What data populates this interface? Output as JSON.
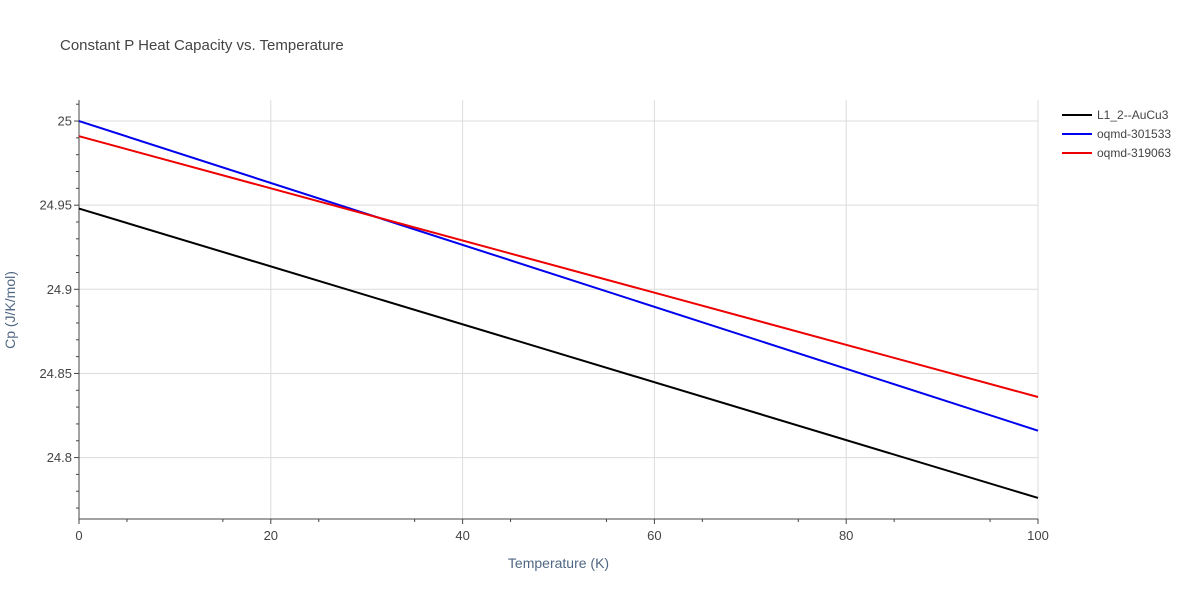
{
  "chart_data": {
    "type": "line",
    "title": "Constant P Heat Capacity vs. Temperature",
    "xlabel": "Temperature (K)",
    "ylabel": "Cp (J/K/mol)",
    "xlim": [
      0,
      100
    ],
    "ylim": [
      24.7635,
      25.0125
    ],
    "xticks": [
      0,
      20,
      40,
      60,
      80,
      100
    ],
    "xtick_labels": [
      "0",
      "20",
      "40",
      "60",
      "80",
      "100"
    ],
    "yticks": [
      24.8,
      24.85,
      24.9,
      24.95,
      25
    ],
    "ytick_labels": [
      "24.8",
      "24.85",
      "24.9",
      "24.95",
      "25"
    ],
    "grid": true,
    "legend_position": "top-right",
    "series": [
      {
        "name": "L1_2--AuCu3",
        "color": "#000000",
        "x": [
          0,
          100
        ],
        "y": [
          24.948,
          24.776
        ]
      },
      {
        "name": "oqmd-301533",
        "color": "#0000ee",
        "x": [
          0,
          100
        ],
        "y": [
          25.0,
          24.816
        ]
      },
      {
        "name": "oqmd-319063",
        "color": "#ee0000",
        "x": [
          0,
          100
        ],
        "y": [
          24.991,
          24.836
        ]
      }
    ]
  }
}
